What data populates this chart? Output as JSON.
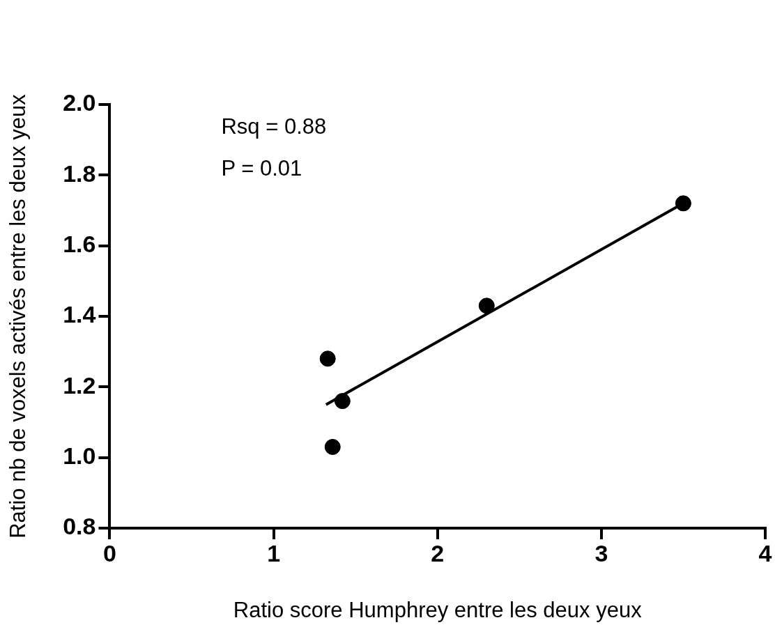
{
  "chart_data": {
    "type": "scatter",
    "xlabel": "Ratio score Humphrey entre les deux yeux",
    "ylabel": "Ratio nb de voxels activés entre les deux yeux",
    "series": [
      {
        "type": "scatter",
        "marker": "circle",
        "color": "#000000",
        "x": [
          1.33,
          1.36,
          1.42,
          2.3,
          3.5
        ],
        "values": [
          1.28,
          1.03,
          1.16,
          1.43,
          1.72
        ]
      },
      {
        "type": "line",
        "marker": "none",
        "color": "#000000",
        "x": [
          1.32,
          3.5
        ],
        "values": [
          1.15,
          1.72
        ]
      }
    ],
    "xlim": [
      0,
      4
    ],
    "xticks": [
      0,
      1,
      2,
      3,
      4
    ],
    "ylim": [
      0.8,
      2.0
    ],
    "yticks": [
      {
        "value": 0.8,
        "label": "0.8"
      },
      {
        "value": 1.0,
        "label": "1.0"
      },
      {
        "value": 1.2,
        "label": "1.2"
      },
      {
        "value": 1.4,
        "label": "1.4"
      },
      {
        "value": 1.6,
        "label": "1.6"
      },
      {
        "value": 1.8,
        "label": "1.8"
      },
      {
        "value": 2.0,
        "label": "2.0"
      }
    ],
    "annotations": [
      "Rsq = 0.88",
      "P = 0.01"
    ],
    "grid": false,
    "legend": false
  }
}
